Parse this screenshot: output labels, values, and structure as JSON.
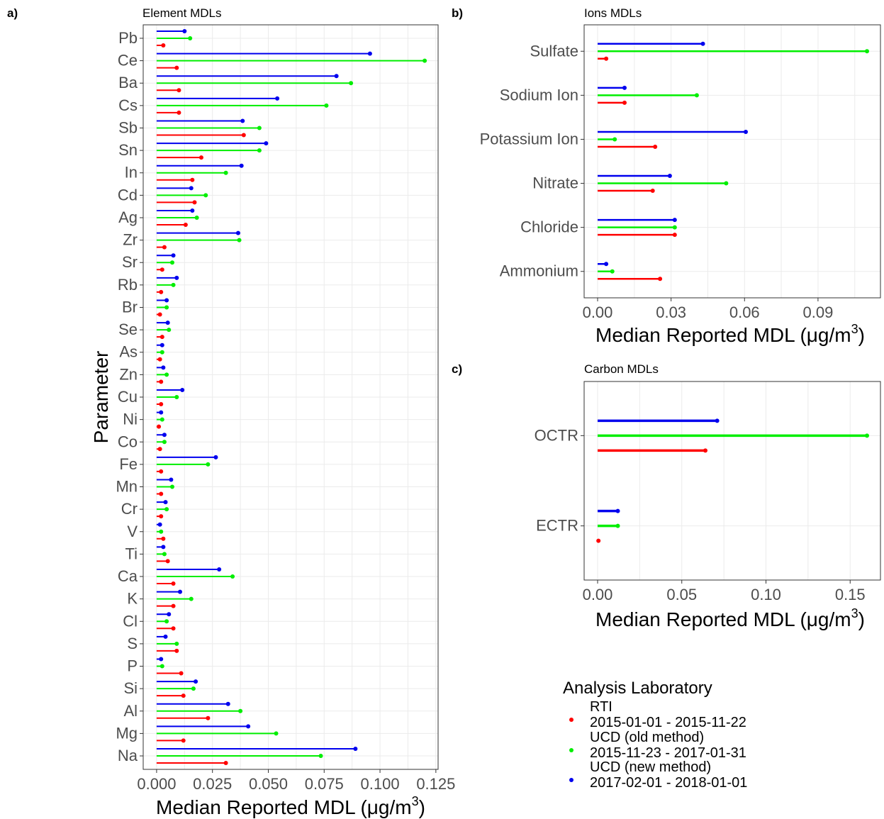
{
  "chart_data": [
    {
      "panel": "a)",
      "title": "Element MDLs",
      "type": "lollipop",
      "orientation": "horizontal",
      "ylabel": "Parameter",
      "xlabel": "Median Reported MDL (μg/m",
      "xlabel_sup": "3",
      "xlabel_end": ")",
      "xlim": [
        -0.006,
        0.126
      ],
      "xticks": [
        0.0,
        0.025,
        0.05,
        0.075,
        0.1,
        0.125
      ],
      "xtick_labels": [
        "0.000",
        "0.025",
        "0.050",
        "0.075",
        "0.100",
        "0.125"
      ],
      "categories": [
        "Pb",
        "Ce",
        "Ba",
        "Cs",
        "Sb",
        "Sn",
        "In",
        "Cd",
        "Ag",
        "Zr",
        "Sr",
        "Rb",
        "Br",
        "Se",
        "As",
        "Zn",
        "Cu",
        "Ni",
        "Co",
        "Fe",
        "Mn",
        "Cr",
        "V",
        "Ti",
        "Ca",
        "K",
        "Cl",
        "S",
        "P",
        "Si",
        "Al",
        "Mg",
        "Na"
      ],
      "series": [
        {
          "name": "UCD (new method)",
          "values": [
            0.0125,
            0.0955,
            0.0805,
            0.054,
            0.0385,
            0.049,
            0.038,
            0.0155,
            0.016,
            0.0365,
            0.0075,
            0.009,
            0.0045,
            0.005,
            0.0025,
            0.003,
            0.0115,
            0.002,
            0.0035,
            0.0265,
            0.0065,
            0.004,
            0.0015,
            0.003,
            0.028,
            0.0105,
            0.0055,
            0.004,
            0.002,
            0.0175,
            0.032,
            0.041,
            0.089
          ]
        },
        {
          "name": "UCD (old method)",
          "values": [
            0.015,
            0.12,
            0.087,
            0.076,
            0.046,
            0.046,
            0.031,
            0.022,
            0.018,
            0.037,
            0.007,
            0.0075,
            0.0045,
            0.0055,
            0.0025,
            0.0045,
            0.009,
            0.0025,
            0.0035,
            0.023,
            0.007,
            0.0045,
            0.002,
            0.0035,
            0.034,
            0.0155,
            0.0045,
            0.009,
            0.0025,
            0.0165,
            0.0375,
            0.0535,
            0.0735
          ]
        },
        {
          "name": "RTI",
          "values": [
            0.003,
            0.009,
            0.01,
            0.01,
            0.039,
            0.02,
            0.016,
            0.017,
            0.013,
            0.0035,
            0.0025,
            0.002,
            0.0015,
            0.0025,
            0.0015,
            0.002,
            0.002,
            0.001,
            0.0015,
            0.002,
            0.002,
            0.002,
            0.003,
            0.005,
            0.0075,
            0.0075,
            0.0075,
            0.009,
            0.011,
            0.012,
            0.023,
            0.012,
            0.031
          ]
        }
      ]
    },
    {
      "panel": "b)",
      "title": "Ions MDLs",
      "type": "lollipop",
      "orientation": "horizontal",
      "xlabel": "Median Reported MDL (μg/m",
      "xlabel_sup": "3",
      "xlabel_end": ")",
      "xlim": [
        -0.0055,
        0.1155
      ],
      "xticks": [
        0.0,
        0.03,
        0.06,
        0.09
      ],
      "xtick_labels": [
        "0.00",
        "0.03",
        "0.06",
        "0.09"
      ],
      "categories": [
        "Sulfate",
        "Sodium Ion",
        "Potassium Ion",
        "Nitrate",
        "Chloride",
        "Ammonium"
      ],
      "series": [
        {
          "name": "UCD (new method)",
          "values": [
            0.043,
            0.011,
            0.0605,
            0.0295,
            0.0315,
            0.0035
          ]
        },
        {
          "name": "UCD (old method)",
          "values": [
            0.11,
            0.0405,
            0.007,
            0.0525,
            0.0315,
            0.006
          ]
        },
        {
          "name": "RTI",
          "values": [
            0.0035,
            0.011,
            0.0235,
            0.0225,
            0.0315,
            0.0255
          ]
        }
      ]
    },
    {
      "panel": "c)",
      "title": "Carbon MDLs",
      "type": "lollipop",
      "orientation": "horizontal",
      "xlabel": "Median Reported MDL (μg/m",
      "xlabel_sup": "3",
      "xlabel_end": ")",
      "xlim": [
        -0.008,
        0.168
      ],
      "xticks": [
        0.0,
        0.05,
        0.1,
        0.15
      ],
      "xtick_labels": [
        "0.00",
        "0.05",
        "0.10",
        "0.15"
      ],
      "categories": [
        "OCTR",
        "ECTR"
      ],
      "series": [
        {
          "name": "UCD (new method)",
          "values": [
            0.071,
            0.012
          ]
        },
        {
          "name": "UCD (old method)",
          "values": [
            0.16,
            0.012
          ]
        },
        {
          "name": "RTI",
          "values": [
            0.064,
            0.0005
          ]
        }
      ]
    }
  ],
  "legend": {
    "title": "Analysis Laboratory",
    "items": [
      {
        "name": "RTI",
        "range": "2015-01-01 - 2015-11-22",
        "color": "#ff0000"
      },
      {
        "name": "UCD (old method)",
        "range": "2015-11-23 - 2017-01-31",
        "color": "#00ee00"
      },
      {
        "name": "UCD (new method)",
        "range": "2017-02-01 - 2018-01-01",
        "color": "#0000ee"
      }
    ]
  },
  "colors": {
    "UCD (new method)": "#0000ee",
    "UCD (old method)": "#00ee00",
    "RTI": "#ff0000"
  }
}
